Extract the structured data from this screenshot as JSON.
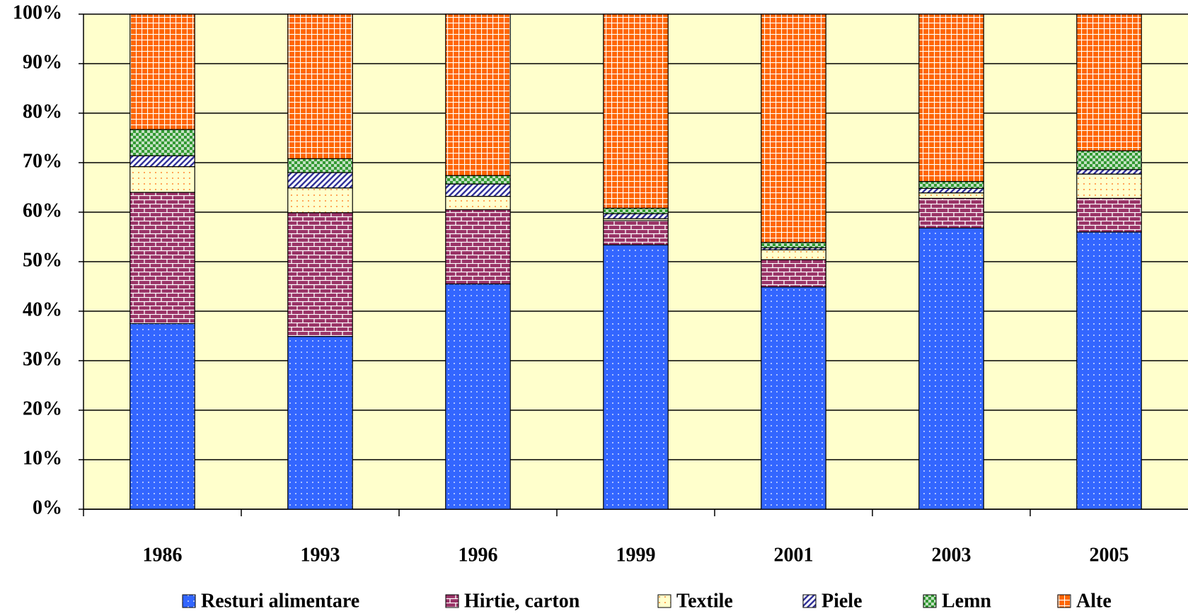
{
  "chart_data": {
    "type": "stacked-bar",
    "categories": [
      "1986",
      "1993",
      "1996",
      "1999",
      "2001",
      "2003",
      "2005"
    ],
    "series": [
      {
        "name": "Resturi alimentare",
        "color": "#3366ff",
        "values": [
          37.5,
          34.9,
          45.5,
          53.4,
          44.9,
          56.8,
          56.0
        ]
      },
      {
        "name": "Hirtie, carton",
        "color": "#993366",
        "values": [
          26.5,
          25.0,
          15.0,
          4.9,
          5.5,
          6.0,
          6.8
        ]
      },
      {
        "name": "Textile",
        "color": "#ffffcc",
        "values": [
          5.2,
          5.0,
          2.7,
          0.4,
          2.0,
          1.1,
          4.9
        ]
      },
      {
        "name": "Piele",
        "color": "#333399",
        "values": [
          2.2,
          3.1,
          2.5,
          1.0,
          0.4,
          0.9,
          0.9
        ]
      },
      {
        "name": "Lemn",
        "color": "#339933",
        "values": [
          5.3,
          2.8,
          1.7,
          1.1,
          1.1,
          1.4,
          3.8
        ]
      },
      {
        "name": "Alte",
        "color": "#ff6600",
        "values": [
          23.3,
          29.2,
          32.6,
          39.2,
          46.1,
          33.8,
          27.6
        ]
      }
    ],
    "ylim": [
      0,
      100
    ],
    "yticks": [
      {
        "value": 0,
        "label": "0%"
      },
      {
        "value": 10,
        "label": "10%"
      },
      {
        "value": 20,
        "label": "20%"
      },
      {
        "value": 30,
        "label": "30%"
      },
      {
        "value": 40,
        "label": "40%"
      },
      {
        "value": 50,
        "label": "50%"
      },
      {
        "value": 60,
        "label": "60%"
      },
      {
        "value": 70,
        "label": "70%"
      },
      {
        "value": 80,
        "label": "80%"
      },
      {
        "value": 90,
        "label": "90%"
      },
      {
        "value": 100,
        "label": "100%"
      }
    ],
    "grid": true,
    "plot_background": "#ffffcc",
    "legend": "bottom"
  }
}
